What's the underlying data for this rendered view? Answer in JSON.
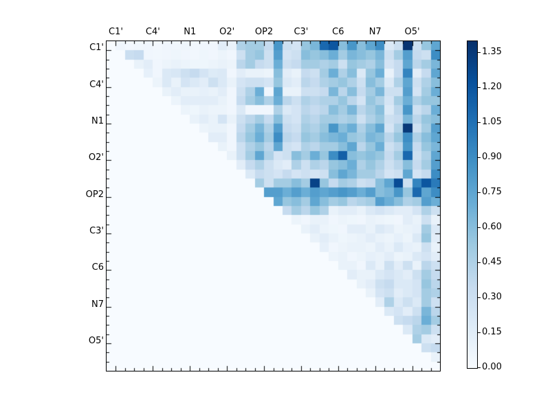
{
  "chart_data": {
    "type": "heatmap",
    "title": "",
    "xlabel": "",
    "ylabel": "",
    "grid": false,
    "description": "Upper-triangular atom-pair heatmap, Blues colormap",
    "axis_group_labels": [
      "C1'",
      "C4'",
      "N1",
      "O2'",
      "OP2",
      "C3'",
      "C6",
      "N7",
      "O5'"
    ],
    "group_size": 4,
    "n": 36,
    "colormap": {
      "name": "Blues",
      "anchors": [
        [
          0.0,
          "#f7fbff"
        ],
        [
          0.125,
          "#deebf7"
        ],
        [
          0.25,
          "#c6dbef"
        ],
        [
          0.375,
          "#9ecae1"
        ],
        [
          0.5,
          "#6baed6"
        ],
        [
          0.625,
          "#4292c6"
        ],
        [
          0.75,
          "#2171b5"
        ],
        [
          0.875,
          "#08519c"
        ],
        [
          1.0,
          "#08306b"
        ]
      ]
    },
    "colorbar": {
      "vmin": 0.0,
      "vmax": 1.4,
      "tick_values": [
        0.0,
        0.15,
        0.3,
        0.45,
        0.6,
        0.75,
        0.9,
        1.05,
        1.2,
        1.35
      ],
      "tick_labels": [
        "0.00",
        "0.15",
        "0.30",
        "0.45",
        "0.60",
        "0.75",
        "0.90",
        "1.05",
        "1.20",
        "1.35"
      ],
      "position": "right"
    },
    "matrix": [
      [
        0,
        0.05,
        0.03,
        0.04,
        0.05,
        0.03,
        0.05,
        0.04,
        0.06,
        0.04,
        0.05,
        0.05,
        0.15,
        0.1,
        0.45,
        0.5,
        0.5,
        0.35,
        0.85,
        0.3,
        0.25,
        0.55,
        0.65,
        1.1,
        1.2,
        0.6,
        0.85,
        0.6,
        0.75,
        0.9,
        0.2,
        0.3,
        1.38,
        0.3,
        0.55,
        0.75
      ],
      [
        0,
        0,
        0.32,
        0.35,
        0.05,
        0.04,
        0.05,
        0.06,
        0.05,
        0.04,
        0.06,
        0.05,
        0.08,
        0.05,
        0.3,
        0.5,
        0.55,
        0.3,
        0.8,
        0.25,
        0.3,
        0.6,
        0.55,
        0.6,
        0.7,
        0.5,
        0.65,
        0.6,
        0.55,
        0.65,
        0.3,
        0.5,
        0.8,
        0.35,
        0.3,
        0.9
      ],
      [
        0,
        0,
        0,
        0.1,
        0.15,
        0.05,
        0.08,
        0.1,
        0.08,
        0.06,
        0.06,
        0.08,
        0.1,
        0.08,
        0.4,
        0.5,
        0.35,
        0.3,
        0.7,
        0.3,
        0.35,
        0.5,
        0.5,
        0.45,
        0.5,
        0.3,
        0.55,
        0.5,
        0.45,
        0.6,
        0.25,
        0.35,
        0.75,
        0.4,
        0.5,
        0.65
      ],
      [
        0,
        0,
        0,
        0,
        0.12,
        0.05,
        0.2,
        0.22,
        0.3,
        0.35,
        0.25,
        0.18,
        0.2,
        0.05,
        0.15,
        0.1,
        0.1,
        0.08,
        0.6,
        0.15,
        0.1,
        0.35,
        0.3,
        0.5,
        0.7,
        0.45,
        0.6,
        0.2,
        0.55,
        0.7,
        0.1,
        0.35,
        0.95,
        0.15,
        0.35,
        0.75
      ],
      [
        0,
        0,
        0,
        0,
        0,
        0.08,
        0.2,
        0.1,
        0.25,
        0.2,
        0.15,
        0.3,
        0.2,
        0.1,
        0.25,
        0.3,
        0.3,
        0.25,
        0.55,
        0.2,
        0.15,
        0.4,
        0.35,
        0.45,
        0.5,
        0.55,
        0.45,
        0.3,
        0.6,
        0.5,
        0.2,
        0.45,
        0.75,
        0.3,
        0.45,
        0.6
      ],
      [
        0,
        0,
        0,
        0,
        0,
        0,
        0.1,
        0.15,
        0.1,
        0.1,
        0.12,
        0.1,
        0.15,
        0.05,
        0.3,
        0.45,
        0.7,
        0.05,
        0.75,
        0.1,
        0.1,
        0.3,
        0.3,
        0.35,
        0.65,
        0.4,
        0.6,
        0.35,
        0.5,
        0.65,
        0.3,
        0.3,
        0.8,
        0.25,
        0.5,
        0.7
      ],
      [
        0,
        0,
        0,
        0,
        0,
        0,
        0,
        0.08,
        0.15,
        0.15,
        0.15,
        0.15,
        0.1,
        0.05,
        0.35,
        0.5,
        0.6,
        0.45,
        0.7,
        0.4,
        0.3,
        0.45,
        0.4,
        0.45,
        0.45,
        0.55,
        0.4,
        0.25,
        0.55,
        0.45,
        0.25,
        0.5,
        0.7,
        0.45,
        0.55,
        0.55
      ],
      [
        0,
        0,
        0,
        0,
        0,
        0,
        0,
        0,
        0.08,
        0.06,
        0.1,
        0.08,
        0.08,
        0.05,
        0.2,
        0.05,
        0.05,
        0.05,
        0.45,
        0.2,
        0.25,
        0.4,
        0.35,
        0.4,
        0.6,
        0.5,
        0.65,
        0.4,
        0.5,
        0.6,
        0.2,
        0.4,
        0.85,
        0.3,
        0.4,
        0.7
      ],
      [
        0,
        0,
        0,
        0,
        0,
        0,
        0,
        0,
        0,
        0.1,
        0.15,
        0.1,
        0.25,
        0.1,
        0.3,
        0.4,
        0.5,
        0.35,
        0.6,
        0.3,
        0.25,
        0.45,
        0.4,
        0.5,
        0.5,
        0.45,
        0.5,
        0.3,
        0.45,
        0.55,
        0.3,
        0.35,
        0.65,
        0.4,
        0.55,
        0.6
      ],
      [
        0,
        0,
        0,
        0,
        0,
        0,
        0,
        0,
        0,
        0,
        0.08,
        0.1,
        0.1,
        0.05,
        0.35,
        0.5,
        0.65,
        0.45,
        0.8,
        0.35,
        0.3,
        0.5,
        0.45,
        0.55,
        0.85,
        0.6,
        0.7,
        0.45,
        0.6,
        0.75,
        0.25,
        0.45,
        1.35,
        0.3,
        0.5,
        0.8
      ],
      [
        0,
        0,
        0,
        0,
        0,
        0,
        0,
        0,
        0,
        0,
        0,
        0.15,
        0.15,
        0.05,
        0.4,
        0.55,
        0.7,
        0.5,
        0.9,
        0.4,
        0.35,
        0.55,
        0.5,
        0.6,
        0.65,
        0.7,
        0.55,
        0.5,
        0.65,
        0.6,
        0.4,
        0.55,
        0.9,
        0.45,
        0.6,
        0.75
      ],
      [
        0,
        0,
        0,
        0,
        0,
        0,
        0,
        0,
        0,
        0,
        0,
        0,
        0.1,
        0.05,
        0.3,
        0.45,
        0.55,
        0.4,
        0.75,
        0.3,
        0.25,
        0.45,
        0.4,
        0.5,
        0.5,
        0.6,
        0.75,
        0.4,
        0.55,
        0.7,
        0.3,
        0.4,
        0.85,
        0.35,
        0.55,
        0.65
      ],
      [
        0,
        0,
        0,
        0,
        0,
        0,
        0,
        0,
        0,
        0,
        0,
        0,
        0,
        0.1,
        0.3,
        0.5,
        0.75,
        0.45,
        0.25,
        0.3,
        0.6,
        0.5,
        0.7,
        0.55,
        0.9,
        1.15,
        0.6,
        0.55,
        0.6,
        0.55,
        0.35,
        0.5,
        1.1,
        0.3,
        0.45,
        0.75
      ],
      [
        0,
        0,
        0,
        0,
        0,
        0,
        0,
        0,
        0,
        0,
        0,
        0,
        0,
        0,
        0.15,
        0.35,
        0.45,
        0.3,
        0.2,
        0.15,
        0.45,
        0.3,
        0.45,
        0.4,
        0.55,
        0.6,
        0.7,
        0.45,
        0.55,
        0.45,
        0.3,
        0.4,
        0.6,
        0.35,
        0.5,
        0.8
      ],
      [
        0,
        0,
        0,
        0,
        0,
        0,
        0,
        0,
        0,
        0,
        0,
        0,
        0,
        0,
        0,
        0.2,
        0.35,
        0.3,
        0.25,
        0.35,
        0.25,
        0.3,
        0.25,
        0.3,
        0.6,
        0.75,
        0.65,
        0.5,
        0.5,
        0.4,
        0.25,
        0.3,
        0.75,
        0.25,
        0.35,
        0.9
      ],
      [
        0,
        0,
        0,
        0,
        0,
        0,
        0,
        0,
        0,
        0,
        0,
        0,
        0,
        0,
        0,
        0,
        0.5,
        0.3,
        0.5,
        0.5,
        0.6,
        0.5,
        1.3,
        0.55,
        0.35,
        0.5,
        0.45,
        0.3,
        0.35,
        0.6,
        0.75,
        1.25,
        0.3,
        0.95,
        1.2,
        1.0
      ],
      [
        0,
        0,
        0,
        0,
        0,
        0,
        0,
        0,
        0,
        0,
        0,
        0,
        0,
        0,
        0,
        0,
        0,
        0.8,
        0.8,
        0.7,
        0.8,
        0.7,
        0.8,
        0.75,
        0.8,
        0.85,
        0.8,
        0.7,
        0.8,
        0.6,
        0.65,
        0.85,
        0.55,
        1.1,
        0.75,
        0.9
      ],
      [
        0,
        0,
        0,
        0,
        0,
        0,
        0,
        0,
        0,
        0,
        0,
        0,
        0,
        0,
        0,
        0,
        0,
        0,
        0.75,
        0.55,
        0.6,
        0.5,
        0.75,
        0.6,
        0.5,
        0.55,
        0.4,
        0.45,
        0.5,
        0.8,
        0.7,
        0.6,
        0.45,
        0.5,
        0.8,
        0.7
      ],
      [
        0,
        0,
        0,
        0,
        0,
        0,
        0,
        0,
        0,
        0,
        0,
        0,
        0,
        0,
        0,
        0,
        0,
        0,
        0,
        0.35,
        0.5,
        0.4,
        0.55,
        0.45,
        0.1,
        0.15,
        0.15,
        0.1,
        0.2,
        0.25,
        0.2,
        0.15,
        0.15,
        0.25,
        0.45,
        0.3
      ],
      [
        0,
        0,
        0,
        0,
        0,
        0,
        0,
        0,
        0,
        0,
        0,
        0,
        0,
        0,
        0,
        0,
        0,
        0,
        0,
        0,
        0.08,
        0.05,
        0.1,
        0.1,
        0.05,
        0.08,
        0.06,
        0.05,
        0.1,
        0.08,
        0.06,
        0.05,
        0.15,
        0.1,
        0.3,
        0.1
      ],
      [
        0,
        0,
        0,
        0,
        0,
        0,
        0,
        0,
        0,
        0,
        0,
        0,
        0,
        0,
        0,
        0,
        0,
        0,
        0,
        0,
        0,
        0.1,
        0.15,
        0.08,
        0.06,
        0.05,
        0.15,
        0.15,
        0.1,
        0.2,
        0.15,
        0.08,
        0.1,
        0.12,
        0.5,
        0.2
      ],
      [
        0,
        0,
        0,
        0,
        0,
        0,
        0,
        0,
        0,
        0,
        0,
        0,
        0,
        0,
        0,
        0,
        0,
        0,
        0,
        0,
        0,
        0,
        0.1,
        0.15,
        0.1,
        0.06,
        0.08,
        0.1,
        0.15,
        0.1,
        0.08,
        0.12,
        0.08,
        0.2,
        0.55,
        0.15
      ],
      [
        0,
        0,
        0,
        0,
        0,
        0,
        0,
        0,
        0,
        0,
        0,
        0,
        0,
        0,
        0,
        0,
        0,
        0,
        0,
        0,
        0,
        0,
        0,
        0.12,
        0.05,
        0.08,
        0.1,
        0.1,
        0.08,
        0.15,
        0.1,
        0.2,
        0.12,
        0.1,
        0.3,
        0.1
      ],
      [
        0,
        0,
        0,
        0,
        0,
        0,
        0,
        0,
        0,
        0,
        0,
        0,
        0,
        0,
        0,
        0,
        0,
        0,
        0,
        0,
        0,
        0,
        0,
        0,
        0.08,
        0.1,
        0.05,
        0.08,
        0.12,
        0.1,
        0.15,
        0.08,
        0.1,
        0.2,
        0.25,
        0.15
      ],
      [
        0,
        0,
        0,
        0,
        0,
        0,
        0,
        0,
        0,
        0,
        0,
        0,
        0,
        0,
        0,
        0,
        0,
        0,
        0,
        0,
        0,
        0,
        0,
        0,
        0,
        0.1,
        0.1,
        0.05,
        0.2,
        0.1,
        0.3,
        0.15,
        0.3,
        0.1,
        0.4,
        0.3
      ],
      [
        0,
        0,
        0,
        0,
        0,
        0,
        0,
        0,
        0,
        0,
        0,
        0,
        0,
        0,
        0,
        0,
        0,
        0,
        0,
        0,
        0,
        0,
        0,
        0,
        0,
        0,
        0.15,
        0.1,
        0.1,
        0.2,
        0.25,
        0.2,
        0.15,
        0.3,
        0.5,
        0.35
      ],
      [
        0,
        0,
        0,
        0,
        0,
        0,
        0,
        0,
        0,
        0,
        0,
        0,
        0,
        0,
        0,
        0,
        0,
        0,
        0,
        0,
        0,
        0,
        0,
        0,
        0,
        0,
        0,
        0.1,
        0.15,
        0.3,
        0.35,
        0.2,
        0.2,
        0.25,
        0.55,
        0.4
      ],
      [
        0,
        0,
        0,
        0,
        0,
        0,
        0,
        0,
        0,
        0,
        0,
        0,
        0,
        0,
        0,
        0,
        0,
        0,
        0,
        0,
        0,
        0,
        0,
        0,
        0,
        0,
        0,
        0,
        0.1,
        0.25,
        0.3,
        0.15,
        0.2,
        0.25,
        0.5,
        0.45
      ],
      [
        0,
        0,
        0,
        0,
        0,
        0,
        0,
        0,
        0,
        0,
        0,
        0,
        0,
        0,
        0,
        0,
        0,
        0,
        0,
        0,
        0,
        0,
        0,
        0,
        0,
        0,
        0,
        0,
        0,
        0.15,
        0.45,
        0.2,
        0.3,
        0.2,
        0.5,
        0.3
      ],
      [
        0,
        0,
        0,
        0,
        0,
        0,
        0,
        0,
        0,
        0,
        0,
        0,
        0,
        0,
        0,
        0,
        0,
        0,
        0,
        0,
        0,
        0,
        0,
        0,
        0,
        0,
        0,
        0,
        0,
        0,
        0.2,
        0.25,
        0.15,
        0.3,
        0.65,
        0.4
      ],
      [
        0,
        0,
        0,
        0,
        0,
        0,
        0,
        0,
        0,
        0,
        0,
        0,
        0,
        0,
        0,
        0,
        0,
        0,
        0,
        0,
        0,
        0,
        0,
        0,
        0,
        0,
        0,
        0,
        0,
        0,
        0,
        0.3,
        0.35,
        0.4,
        0.7,
        0.5
      ],
      [
        0,
        0,
        0,
        0,
        0,
        0,
        0,
        0,
        0,
        0,
        0,
        0,
        0,
        0,
        0,
        0,
        0,
        0,
        0,
        0,
        0,
        0,
        0,
        0,
        0,
        0,
        0,
        0,
        0,
        0,
        0,
        0,
        0.2,
        0.45,
        0.5,
        0.3
      ],
      [
        0,
        0,
        0,
        0,
        0,
        0,
        0,
        0,
        0,
        0,
        0,
        0,
        0,
        0,
        0,
        0,
        0,
        0,
        0,
        0,
        0,
        0,
        0,
        0,
        0,
        0,
        0,
        0,
        0,
        0,
        0,
        0,
        0,
        0.5,
        0.2,
        0.15
      ],
      [
        0,
        0,
        0,
        0,
        0,
        0,
        0,
        0,
        0,
        0,
        0,
        0,
        0,
        0,
        0,
        0,
        0,
        0,
        0,
        0,
        0,
        0,
        0,
        0,
        0,
        0,
        0,
        0,
        0,
        0,
        0,
        0,
        0,
        0,
        0.3,
        0.35
      ],
      [
        0,
        0,
        0,
        0,
        0,
        0,
        0,
        0,
        0,
        0,
        0,
        0,
        0,
        0,
        0,
        0,
        0,
        0,
        0,
        0,
        0,
        0,
        0,
        0,
        0,
        0,
        0,
        0,
        0,
        0,
        0,
        0,
        0,
        0,
        0,
        0.1
      ],
      [
        0,
        0,
        0,
        0,
        0,
        0,
        0,
        0,
        0,
        0,
        0,
        0,
        0,
        0,
        0,
        0,
        0,
        0,
        0,
        0,
        0,
        0,
        0,
        0,
        0,
        0,
        0,
        0,
        0,
        0,
        0,
        0,
        0,
        0,
        0,
        0
      ]
    ]
  }
}
